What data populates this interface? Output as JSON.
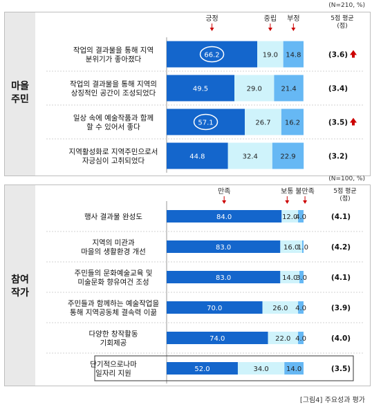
{
  "caption": "[그림4] 주요성과 평가",
  "chart_data": [
    {
      "type": "bar",
      "stacked": true,
      "orientation": "horizontal",
      "n_note": "(N=210, %)",
      "group_label": [
        "마을",
        "주민"
      ],
      "avg_header": [
        "5점 평균",
        "(점)"
      ],
      "legend_labels": [
        "긍정",
        "중립",
        "부정"
      ],
      "categories": [
        [
          "작업의 결과물을 통해 지역",
          "분위기가 좋아졌다"
        ],
        [
          "작업의 결과물을 통해 지역의",
          "상징적인 공간이 조성되었다"
        ],
        [
          "일상 속에 예술작품과 함께",
          "할 수 있어서 좋다"
        ],
        [
          "지역활성화로 지역주민으로서",
          "자긍심이 고취되었다"
        ]
      ],
      "series": [
        {
          "name": "긍정",
          "values": [
            66.2,
            49.5,
            57.1,
            44.8
          ]
        },
        {
          "name": "중립",
          "values": [
            19.0,
            29.0,
            26.7,
            32.4
          ]
        },
        {
          "name": "부정",
          "values": [
            14.8,
            21.4,
            16.2,
            22.9
          ]
        }
      ],
      "averages": [
        "(3.6)",
        "(3.4)",
        "(3.5)",
        "(3.2)"
      ],
      "circled": [
        true,
        false,
        true,
        false
      ],
      "up_arrow": [
        true,
        false,
        true,
        false
      ],
      "xlim": [
        0,
        100
      ]
    },
    {
      "type": "bar",
      "stacked": true,
      "orientation": "horizontal",
      "n_note": "(N=100, %)",
      "group_label": [
        "참여",
        "작가"
      ],
      "avg_header": [
        "5점 평균",
        "(점)"
      ],
      "legend_labels": [
        "만족",
        "보통",
        "불만족"
      ],
      "categories": [
        [
          "행사 결과물 완성도"
        ],
        [
          "지역의 미관과",
          "마을의 생활환경 개선"
        ],
        [
          "주민들의 문화예술교육 및",
          "미술문화 향유여건 조성"
        ],
        [
          "주민들과 함께하는 예술작업을",
          "통해 지역공동체 결속력 이끎"
        ],
        [
          "다양한 창작활동",
          "기회제공"
        ],
        [
          "단기적으로나마",
          "일자리 지원"
        ]
      ],
      "series": [
        {
          "name": "만족",
          "values": [
            84.0,
            83.0,
            83.0,
            70.0,
            74.0,
            52.0
          ]
        },
        {
          "name": "보통",
          "values": [
            12.0,
            16.0,
            14.0,
            26.0,
            22.0,
            34.0
          ]
        },
        {
          "name": "불만족",
          "values": [
            4.0,
            1.0,
            3.0,
            4.0,
            4.0,
            14.0
          ]
        }
      ],
      "averages": [
        "(4.1)",
        "(4.2)",
        "(4.1)",
        "(3.9)",
        "(4.0)",
        "(3.5)"
      ],
      "highlighted": [
        false,
        false,
        false,
        false,
        false,
        true
      ],
      "xlim": [
        0,
        100
      ]
    }
  ],
  "colors": {
    "positive": "#1466cc",
    "neutral": "#cff3fb",
    "negative": "#66b8f4",
    "arrow": "#cc0000",
    "tab": "#e9e9e9",
    "axis": "#999999"
  }
}
